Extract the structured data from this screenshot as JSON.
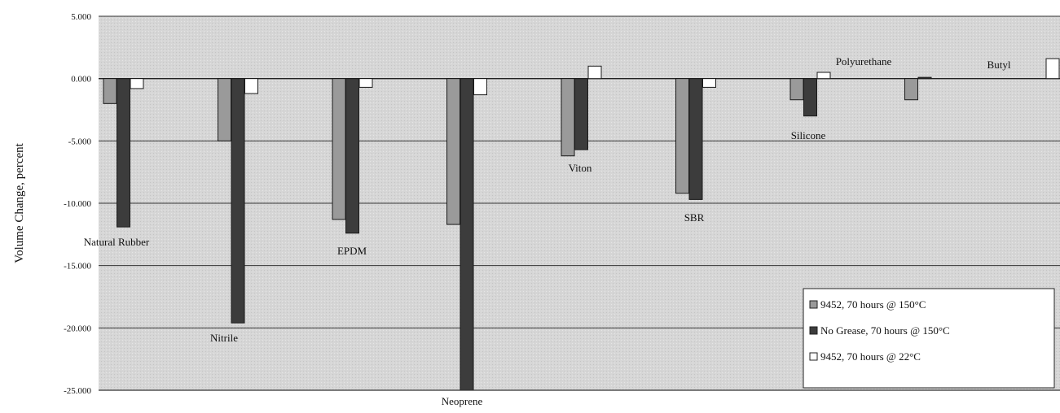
{
  "chart_data": {
    "type": "bar",
    "title": "",
    "xlabel": "",
    "ylabel": "Volume Change, percent",
    "ylim": [
      -25,
      5
    ],
    "yticks": [
      5,
      0,
      -5,
      -10,
      -15,
      -20,
      -25
    ],
    "ytick_labels": [
      "5.000",
      "0.000",
      "-5.000",
      "-10.000",
      "-15.000",
      "-20.000",
      "-25.000"
    ],
    "grid": true,
    "legend_position": "bottom-right",
    "categories": [
      "Natural Rubber",
      "Nitrile",
      "EPDM",
      "Neoprene",
      "Viton",
      "SBR",
      "Silicone",
      "Polyurethane",
      "Butyl"
    ],
    "series": [
      {
        "name": "9452, 70 hours @ 150°C",
        "color": "#9a9a9a",
        "values": [
          -2.0,
          -5.0,
          -11.3,
          -11.7,
          -6.2,
          -9.2,
          -1.7,
          -1.7,
          null
        ]
      },
      {
        "name": "No Grease, 70 hours @ 150°C",
        "color": "#3c3c3c",
        "values": [
          -11.9,
          -19.6,
          -12.4,
          -25.0,
          -5.7,
          -9.7,
          -3.0,
          0.1,
          null
        ]
      },
      {
        "name": "9452, 70 hours @ 22°C",
        "color": "#ffffff",
        "values": [
          -0.8,
          -1.2,
          -0.7,
          -1.3,
          1.0,
          -0.7,
          0.5,
          null,
          1.6
        ]
      }
    ]
  }
}
